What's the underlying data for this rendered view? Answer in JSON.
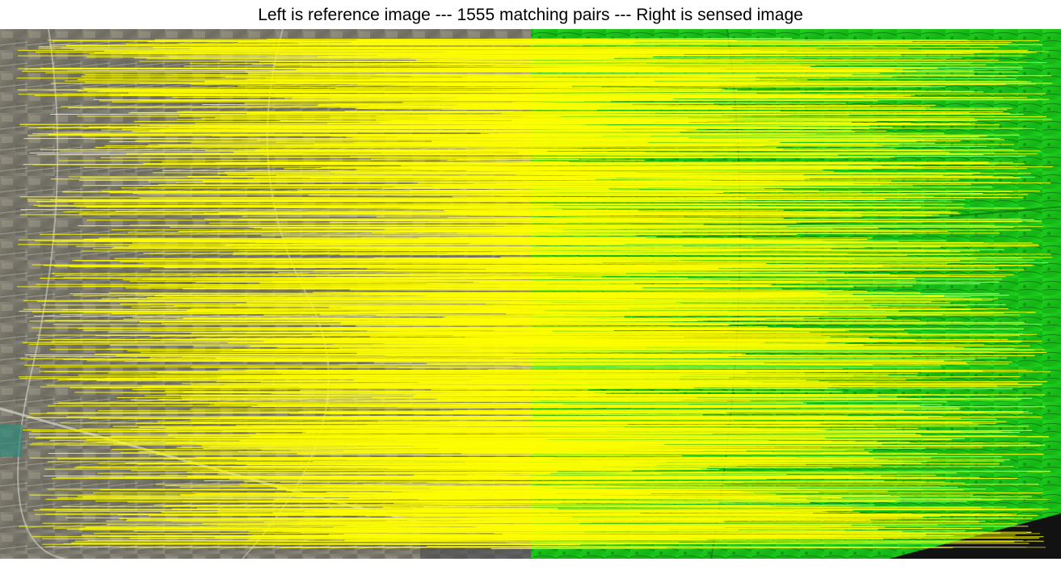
{
  "figure": {
    "title": "Left is reference image --- 1555 matching pairs --- Right is sensed image",
    "match_count": 1555,
    "match_line_color": "#ffff00",
    "panels": [
      {
        "role": "reference-image",
        "kind": "optical satellite photo of rural terrain with roads, fields and village"
      },
      {
        "role": "sensed-image",
        "kind": "green false-color rendering of the same terrain"
      }
    ],
    "colors": {
      "reference_base": "#7c7a6e",
      "sensed_base": "#19c419",
      "sensed_nodata": "#121212"
    }
  }
}
